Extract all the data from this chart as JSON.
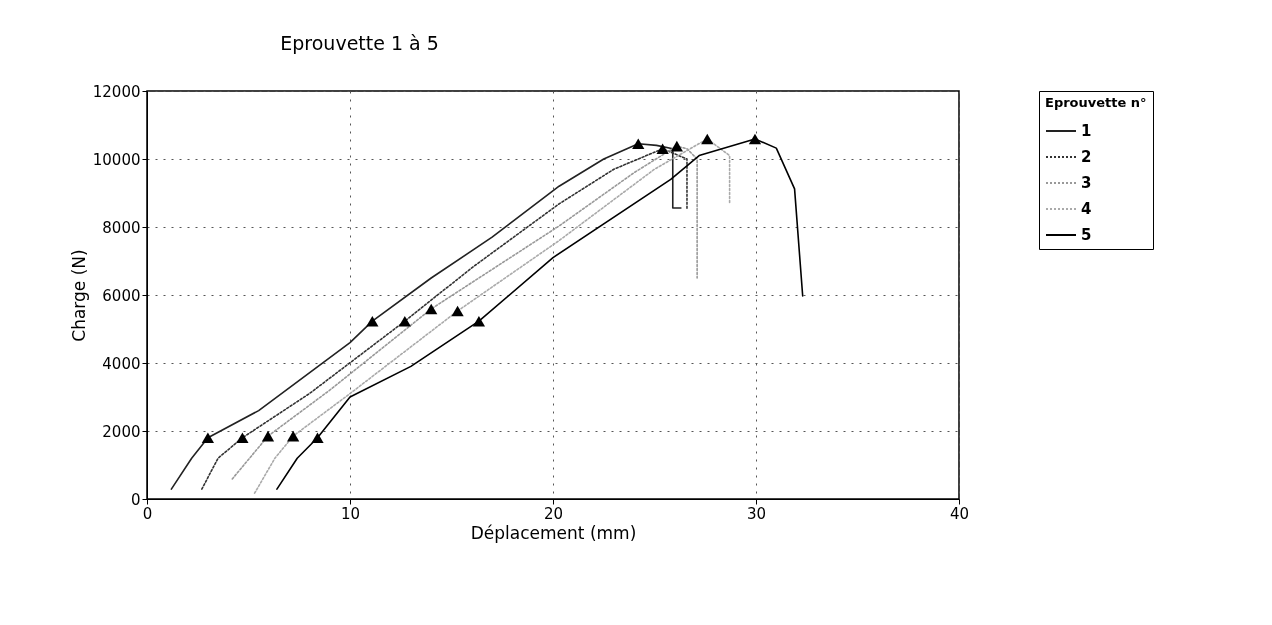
{
  "chart_data": {
    "type": "line",
    "title": "Eprouvette 1 à 5",
    "xlabel": "Déplacement (mm)",
    "ylabel": "Charge (N)",
    "legend_title": "Eprouvette n°",
    "xlim": [
      0,
      40
    ],
    "xticks": [
      0,
      10,
      20,
      30,
      40
    ],
    "ylim": [
      0,
      12000
    ],
    "yticks": [
      0,
      2000,
      4000,
      6000,
      8000,
      10000,
      12000
    ],
    "grid": true,
    "legend": "right",
    "series": [
      {
        "name": "1",
        "color": "#222222",
        "line_style": "solid",
        "x": [
          1.2,
          2.2,
          3.0,
          5.5,
          10,
          11.1,
          14,
          17,
          20.3,
          22.5,
          24.2,
          25.1,
          25.9,
          25.9,
          26.3
        ],
        "values": [
          290,
          1200,
          1800,
          2600,
          4600,
          5230,
          6500,
          7700,
          9200,
          10000,
          10450,
          10400,
          10300,
          8560,
          8560
        ]
      },
      {
        "name": "2",
        "color": "#333333",
        "line_style": "dotted",
        "x": [
          2.7,
          3.5,
          4.7,
          8,
          12.7,
          16,
          20.3,
          23,
          25.4,
          26.6,
          26.6
        ],
        "values": [
          290,
          1200,
          1800,
          3100,
          5230,
          6800,
          8680,
          9700,
          10300,
          10000,
          8500
        ]
      },
      {
        "name": "3",
        "color": "#999999",
        "line_style": "dotted",
        "x": [
          4.2,
          5.96,
          9,
          14,
          20.3,
          24,
          26.1,
          26.6,
          27.1,
          27.1
        ],
        "values": [
          590,
          1850,
          3200,
          5590,
          8030,
          9600,
          10380,
          10300,
          10000,
          6500
        ]
      },
      {
        "name": "4",
        "color": "#aaaaaa",
        "line_style": "dotted",
        "x": [
          5.3,
          6.3,
          7.2,
          10,
          15.3,
          20.3,
          25,
          27.6,
          28.7,
          28.7
        ],
        "values": [
          170,
          1200,
          1850,
          3100,
          5530,
          7600,
          9700,
          10590,
          10100,
          8700
        ]
      },
      {
        "name": "5",
        "color": "#000000",
        "line_style": "solid",
        "x": [
          6.4,
          7.4,
          8.4,
          10,
          13,
          16.35,
          20,
          25.8,
          27.2,
          29.95,
          31.0,
          31.9,
          32.3
        ],
        "values": [
          290,
          1200,
          1800,
          3000,
          3900,
          5230,
          7100,
          9400,
          10100,
          10590,
          10320,
          9120,
          5970
        ]
      },
      {
        "type": "scatter",
        "color": "#000000",
        "marker": "triangle",
        "x": [
          3.0,
          4.7,
          5.96,
          7.2,
          8.4,
          11.1,
          12.7,
          14.0,
          15.3,
          16.35,
          24.2,
          25.4,
          26.1,
          27.6,
          29.95
        ],
        "values": [
          1800,
          1800,
          1850,
          1850,
          1800,
          5230,
          5230,
          5590,
          5530,
          5230,
          10450,
          10300,
          10380,
          10590,
          10590
        ]
      }
    ]
  }
}
